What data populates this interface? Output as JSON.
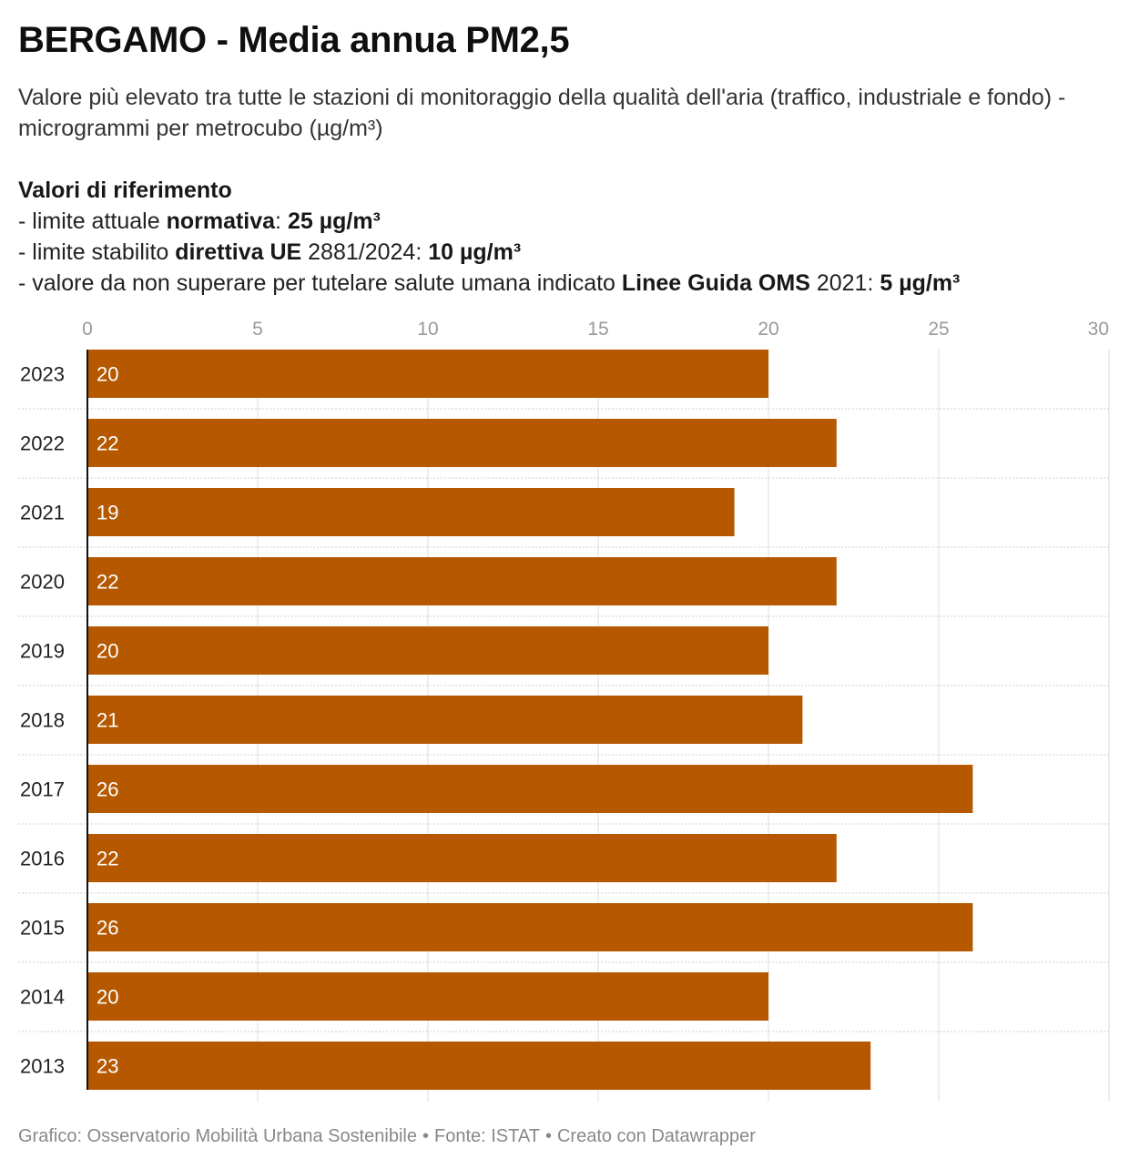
{
  "title": "BERGAMO - Media annua PM2,5",
  "subtitle": "Valore più elevato tra tutte le stazioni di monitoraggio della qualità dell'aria (traffico, industriale e fondo) - microgrammi per metrocubo (µg/m³)",
  "references": {
    "heading": "Valori di riferimento",
    "line1": {
      "prefix": "- limite attuale ",
      "strong": "normativa",
      "mid": ": ",
      "value": "25 µg/m³"
    },
    "line2": {
      "prefix": "- limite stabilito ",
      "strong": "direttiva UE",
      "mid": " 2881/2024: ",
      "value": "10 µg/m³"
    },
    "line3": {
      "prefix": "- valore da non superare per tutelare salute umana indicato ",
      "strong": "Linee Guida OMS",
      "mid": " 2021: ",
      "value": "5 µg/m³"
    }
  },
  "footer": {
    "credit": "Grafico: Osservatorio Mobilità Urbana Sostenibile",
    "source": "Fonte: ISTAT",
    "tool": "Creato con Datawrapper",
    "separator": "•"
  },
  "colors": {
    "bar": "#b55800",
    "bar_label": "#ffffff",
    "grid": "#dddddd",
    "row_divider": "#cfcfcf",
    "axis_tick": "#999999",
    "category_label": "#222222"
  },
  "chart_data": {
    "type": "bar",
    "orientation": "horizontal",
    "categories": [
      "2023",
      "2022",
      "2021",
      "2020",
      "2019",
      "2018",
      "2017",
      "2016",
      "2015",
      "2014",
      "2013"
    ],
    "values": [
      20,
      22,
      19,
      22,
      20,
      21,
      26,
      22,
      26,
      20,
      23
    ],
    "xlim": [
      0,
      30
    ],
    "xticks": [
      0,
      5,
      10,
      15,
      20,
      25,
      30
    ],
    "xaxis_position": "top",
    "grid": true,
    "data_labels": "inside-start"
  }
}
